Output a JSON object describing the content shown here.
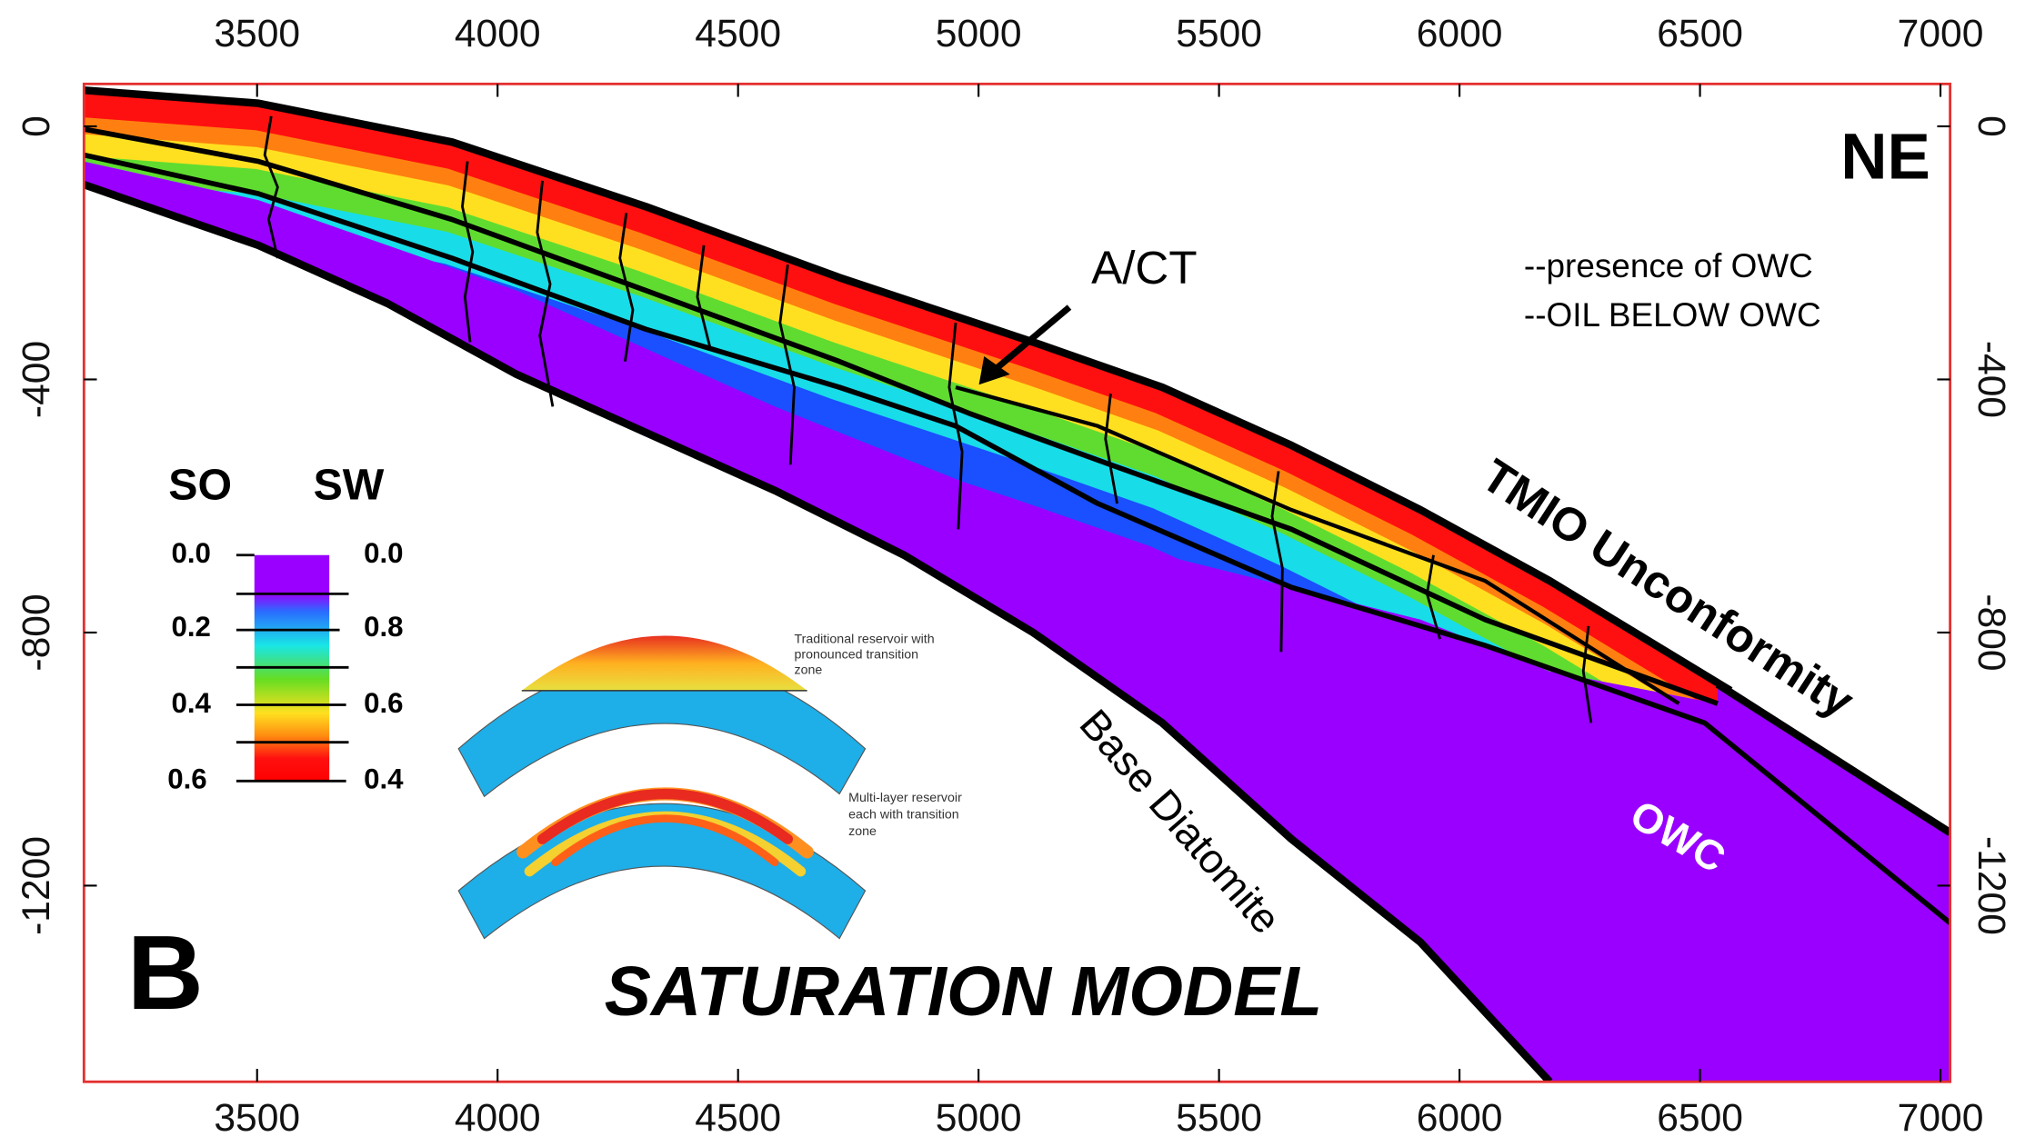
{
  "chart_data": {
    "type": "cross-section",
    "title": "SATURATION MODEL",
    "panel_label": "B",
    "direction_label": "NE",
    "notes": [
      "--presence of OWC",
      "--OIL BELOW OWC"
    ],
    "annotations": {
      "act": "A/CT",
      "unconformity": "TMIO Unconformity",
      "base": "Base Diatomite",
      "owc": "OWC"
    },
    "colorbar": {
      "left_title": "SO",
      "right_title": "SW",
      "left_labels": [
        "0.0",
        "0.2",
        "0.4",
        "0.6"
      ],
      "right_labels": [
        "0.0",
        "0.8",
        "0.6",
        "0.4"
      ]
    },
    "inset_texts": [
      "Traditional reservoir with pronounced transition zone",
      "Multi-layer reservoir each with transition zone"
    ],
    "xlim": [
      3140,
      7020
    ],
    "xticks": [
      3500,
      4000,
      4500,
      5000,
      5500,
      6000,
      6500,
      7000
    ],
    "ylim": [
      -1510,
      67
    ],
    "yticks": [
      0,
      -400,
      -800,
      -1200
    ],
    "frame_color": "#e53030"
  }
}
